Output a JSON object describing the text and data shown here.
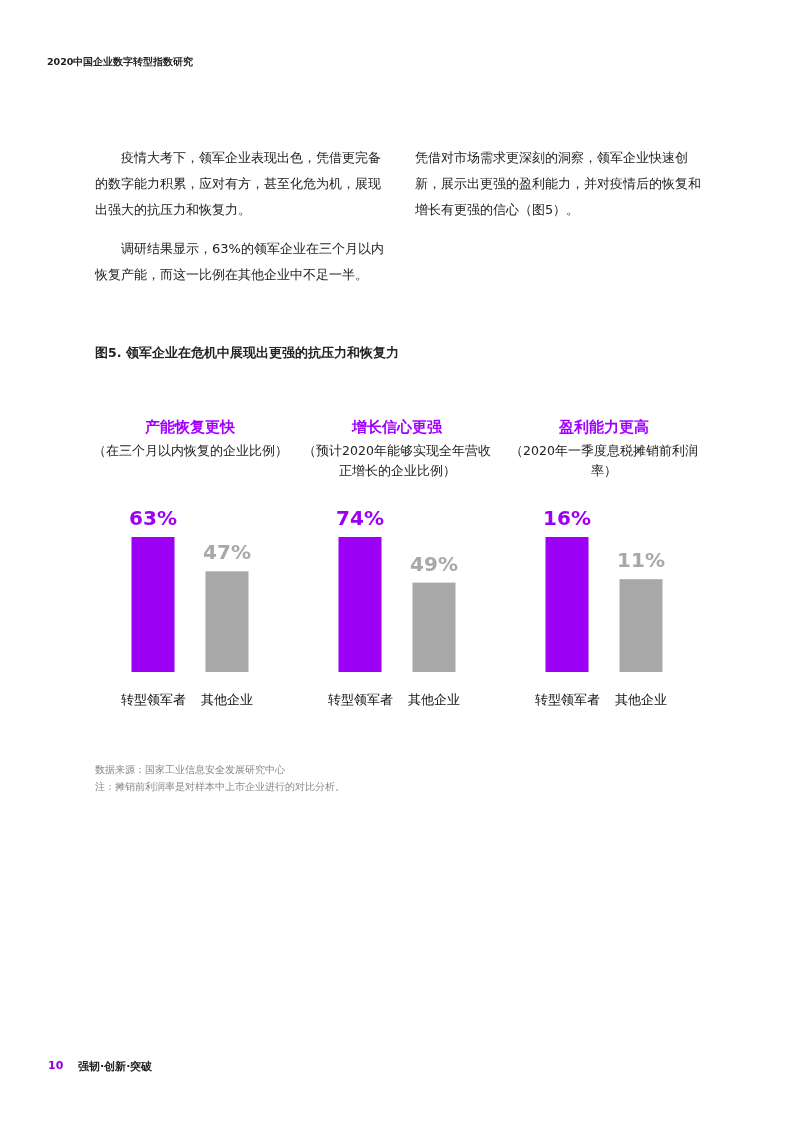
{
  "chart_data": [
    {
      "type": "other",
      "title": "图5. 领军企业在危机中展现出更强的抗压力和恢复力",
      "annotations": [
        "2020中国企业数字转型指数研究",
        "疫情大考下，领军企业表现出色，凭借更完备的数字能力积累，应对有方，甚至化危为机，展现出强大的抗压力和恢复力。",
        "调研结果显示，63%的领军企业在三个月以内恢复产能，而这一比例在其他企业中不足一半。",
        "凭借对市场需求更深刻的洞察，领军企业快速创新，展示出更强的盈利能力，并对疫情后的恢复和增长有更强的信心（图5）。"
      ]
    },
    {
      "type": "bar",
      "title": "产能恢复更快",
      "subtitle": "（在三个月以内恢复的企业比例）",
      "categories": [
        "转型领军者",
        "其他企业"
      ],
      "values": [
        63,
        47
      ],
      "value_labels": [
        "63%",
        "47%"
      ],
      "colors": [
        "#9b00f5",
        "#a8a8a8"
      ]
    },
    {
      "type": "bar",
      "title": "增长信心更强",
      "subtitle": "（预计2020年能够实现全年营收正增长的企业比例）",
      "categories": [
        "转型领军者",
        "其他企业"
      ],
      "values": [
        74,
        49
      ],
      "value_labels": [
        "74%",
        "49%"
      ],
      "colors": [
        "#9b00f5",
        "#a8a8a8"
      ]
    },
    {
      "type": "bar",
      "title": "盈利能力更高",
      "subtitle": "（2020年一季度息税摊销前利润率）",
      "categories": [
        "转型领军者",
        "其他企业"
      ],
      "values": [
        16,
        11
      ],
      "value_labels": [
        "16%",
        "11%"
      ],
      "colors": [
        "#9b00f5",
        "#a8a8a8"
      ]
    },
    {
      "type": "other",
      "annotations": [
        "数据来源：国家工业信息安全发展研究中心",
        "注：摊销前利润率是对样本中上市企业进行的对比分析。",
        "10",
        "强韧·创新·突破"
      ]
    }
  ]
}
